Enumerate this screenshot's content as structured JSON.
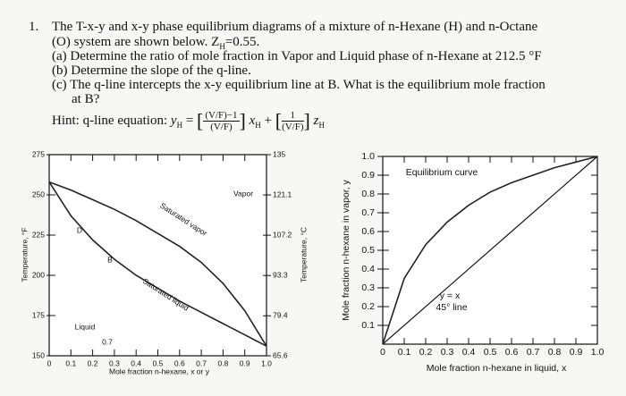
{
  "question": {
    "number": "1.",
    "line1": "The T-x-y and x-y phase equilibrium diagrams of a mixture of n-Hexane (H) and n-Octane",
    "line2a": "(O) system are shown below. Z",
    "line2sub": "H",
    "line2b": "=0.55.",
    "part_a": "(a) Determine the ratio of mole fraction in Vapor and Liquid phase of n-Hexane at 212.5 °F",
    "part_b": "(b) Determine the slope of the q-line.",
    "part_c1": "(c) The q-line intercepts the x-y equilibrium line at B. What is the equilibrium mole fraction",
    "part_c2": "at B?",
    "hint": {
      "label": "Hint: q-line equation:",
      "y": "y",
      "y_sub": "H",
      "equals": "=",
      "frac1_num": "(V/F)−1",
      "frac1_den": "(V/F)",
      "x": "x",
      "x_sub": "H",
      "plus": "+",
      "frac2_num": "1",
      "frac2_den": "(V/F)",
      "z": "z",
      "z_sub": "H"
    }
  },
  "chart_data": [
    {
      "type": "line",
      "xlabel": "Mole fraction n-hexane, x or y",
      "ylabel": "Temperature, °F",
      "y2label": "Temperature, °C",
      "xlim": [
        0,
        1
      ],
      "xticks": [
        0,
        0.1,
        0.2,
        0.3,
        0.4,
        0.5,
        0.6,
        0.7,
        0.8,
        0.9,
        {
          "value": 1,
          "label": "1.0"
        }
      ],
      "ylim": [
        150,
        275
      ],
      "yticks": [
        150,
        175,
        200,
        225,
        250,
        275
      ],
      "y2lim": [
        65.6,
        135
      ],
      "y2ticks": [
        65.6,
        79.4,
        93.3,
        107.2,
        121.1,
        135
      ],
      "x": [
        0,
        0.1,
        0.2,
        0.3,
        0.4,
        0.5,
        0.6,
        0.7,
        0.8,
        0.9,
        1
      ],
      "series": [
        {
          "name": "Saturated vapor",
          "color": "#222222",
          "values": [
            258,
            253,
            247,
            241,
            234,
            226,
            218,
            208,
            195,
            178,
            156
          ]
        },
        {
          "name": "Saturated liquid",
          "color": "#222222",
          "values": [
            258,
            237,
            222,
            210,
            200,
            192,
            184,
            177,
            170,
            163,
            156
          ]
        }
      ],
      "annotations": [
        "Vapor",
        "Liquid",
        "D",
        "B",
        "0.7"
      ]
    },
    {
      "type": "line",
      "xlabel": "Mole fraction n-hexane in liquid, x",
      "ylabel": "Mole fraction n-hexane in vapor, y",
      "xlim": [
        0,
        1
      ],
      "xticks": [
        0,
        0.1,
        0.2,
        0.3,
        0.4,
        0.5,
        0.6,
        0.7,
        0.8,
        0.9,
        {
          "value": 1,
          "label": "1.0"
        }
      ],
      "ylim": [
        0,
        1
      ],
      "yticks": [
        0.1,
        0.2,
        0.3,
        0.4,
        0.5,
        0.6,
        0.7,
        0.8,
        0.9,
        {
          "value": 1,
          "label": "1.0"
        }
      ],
      "x": [
        0,
        0.1,
        0.2,
        0.3,
        0.4,
        0.5,
        0.6,
        0.7,
        0.8,
        0.9,
        1
      ],
      "series": [
        {
          "name": "Equilibrium curve",
          "color": "#222222",
          "values": [
            0,
            0.35,
            0.53,
            0.65,
            0.74,
            0.81,
            0.86,
            0.9,
            0.94,
            0.97,
            1
          ]
        }
      ],
      "annotations": [
        "y = x",
        "45° line"
      ]
    }
  ]
}
